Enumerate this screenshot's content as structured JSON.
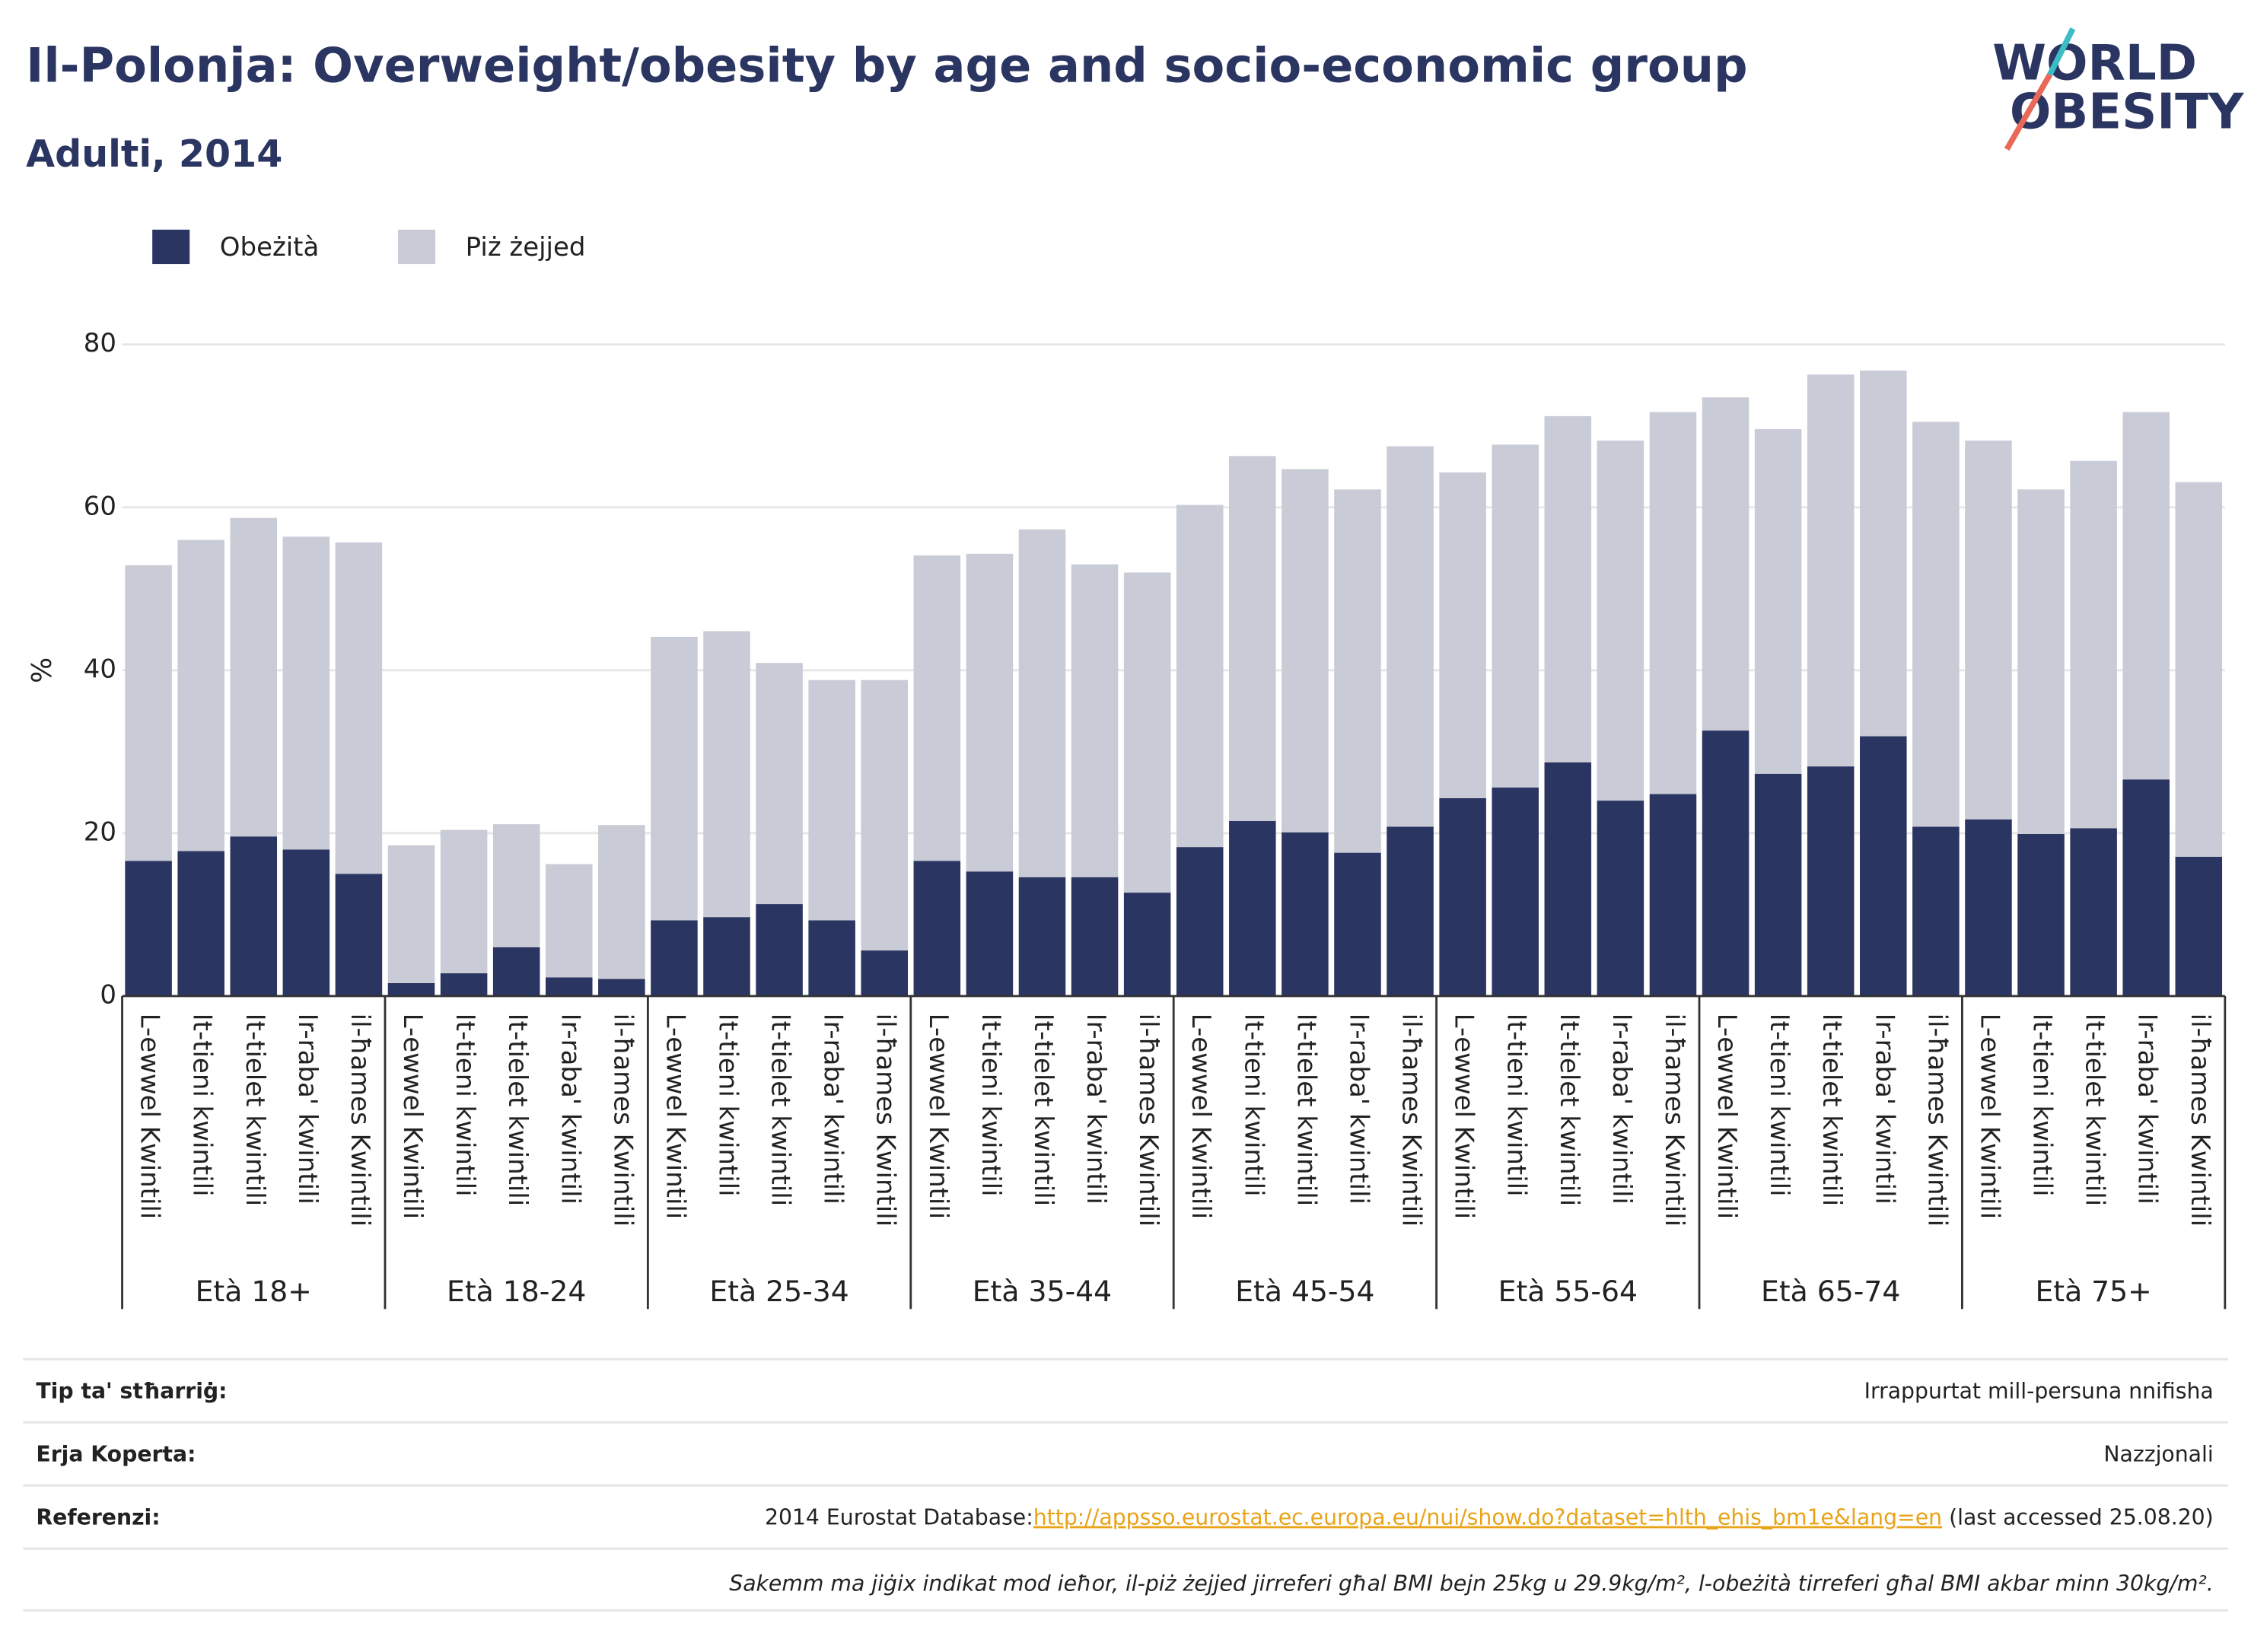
{
  "chart_data": {
    "type": "bar",
    "stacked": true,
    "title": "Il-Polonja: Overweight/obesity by age and socio-economic group",
    "subtitle": "Adulti, 2014",
    "ylabel": "%",
    "ylim": [
      0,
      80
    ],
    "yticks": [
      0,
      20,
      40,
      60,
      80
    ],
    "grid": true,
    "legend": "top-left",
    "groups": [
      "Età 18+",
      "Età 18-24",
      "Età 25-34",
      "Età 35-44",
      "Età 45-54",
      "Età 55-64",
      "Età 65-74",
      "Età 75+"
    ],
    "categories": [
      "L-ewwel Kwintili",
      "It-tieni kwintili",
      "It-tielet kwintili",
      "Ir-raba' kwintili",
      "il-ħames Kwintili",
      "L-ewwel Kwintili",
      "It-tieni kwintili",
      "It-tielet kwintili",
      "Ir-raba' kwintili",
      "il-ħames Kwintili",
      "L-ewwel Kwintili",
      "It-tieni kwintili",
      "It-tielet kwintili",
      "Ir-raba' kwintili",
      "il-ħames Kwintili",
      "L-ewwel Kwintili",
      "It-tieni kwintili",
      "It-tielet kwintili",
      "Ir-raba' kwintili",
      "il-ħames Kwintili",
      "L-ewwel Kwintili",
      "It-tieni kwintili",
      "It-tielet kwintili",
      "Ir-raba' kwintili",
      "il-ħames Kwintili",
      "L-ewwel Kwintili",
      "It-tieni kwintili",
      "It-tielet kwintili",
      "Ir-raba' kwintili",
      "il-ħames Kwintili",
      "L-ewwel Kwintili",
      "It-tieni kwintili",
      "It-tielet kwintili",
      "Ir-raba' kwintili",
      "il-ħames Kwintili",
      "L-ewwel Kwintili",
      "It-tieni kwintili",
      "It-tielet kwintili",
      "Ir-raba' kwintili",
      "il-ħames Kwintili"
    ],
    "series": [
      {
        "name": "Obeżità",
        "color": "#2b3561",
        "values": [
          16.6,
          17.8,
          19.6,
          18.0,
          15.0,
          1.6,
          2.8,
          6.0,
          2.3,
          2.1,
          9.3,
          9.7,
          11.3,
          9.3,
          5.6,
          16.6,
          15.3,
          14.6,
          14.6,
          12.7,
          18.3,
          21.5,
          20.1,
          17.6,
          20.8,
          24.3,
          25.6,
          28.7,
          24.0,
          24.8,
          32.6,
          27.3,
          28.2,
          31.9,
          20.8,
          21.7,
          19.9,
          20.6,
          26.6,
          17.1
        ]
      },
      {
        "name": "Piż żejjed",
        "color": "#c9cbd6",
        "values": [
          36.3,
          38.2,
          39.1,
          38.4,
          40.7,
          16.9,
          17.6,
          15.1,
          13.9,
          18.9,
          34.8,
          35.1,
          29.6,
          29.5,
          33.2,
          37.5,
          39.0,
          42.7,
          38.4,
          39.3,
          42.0,
          44.8,
          44.6,
          44.6,
          46.7,
          40.0,
          42.1,
          42.5,
          44.2,
          46.9,
          40.9,
          42.3,
          48.1,
          44.9,
          49.7,
          46.5,
          42.3,
          45.1,
          45.1,
          46.0
        ]
      }
    ]
  },
  "logo": {
    "line1": "WORLD",
    "line2": "OBESITY"
  },
  "footer": {
    "rows": [
      {
        "label": "Tip ta' stħarriġ:",
        "value": "Irrappurtat mill-persuna nnifisha"
      },
      {
        "label": "Erja Koperta:",
        "value": "Nazzjonali"
      }
    ],
    "reference": {
      "label": "Referenzi:",
      "prefix": "2014 Eurostat Database:",
      "link": "http://appsso.eurostat.ec.europa.eu/nui/show.do?dataset=hlth_ehis_bm1e&lang=en",
      "suffix": " (last accessed 25.08.20)"
    },
    "note": "Sakemm ma jiġix indikat mod ieħor, il-piż żejjed jirreferi għal BMI bejn 25kg u 29.9kg/m², l-obeżità tirreferi għal BMI akbar minn 30kg/m²."
  }
}
